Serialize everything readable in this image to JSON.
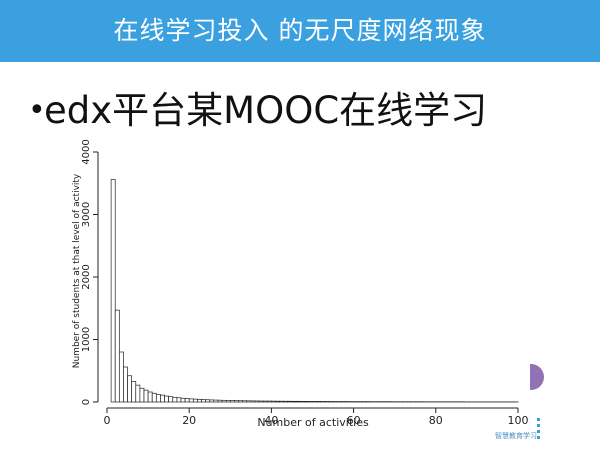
{
  "header": {
    "title": "在线学习投入 的无尺度网络现象"
  },
  "bullet": {
    "marker": "•",
    "text": "edx平台某MOOC在线学习"
  },
  "watermark": "智慧教育学习",
  "chart_data": {
    "type": "bar",
    "title": "",
    "xlabel": "Number of activities",
    "ylabel": "Number of students at that level of activity",
    "xlim": [
      0,
      100
    ],
    "ylim": [
      0,
      4000
    ],
    "xticks": [
      0,
      20,
      40,
      60,
      80,
      100
    ],
    "yticks": [
      0,
      1000,
      2000,
      3000,
      4000
    ],
    "bin_width": 1,
    "x": [
      1,
      2,
      3,
      4,
      5,
      6,
      7,
      8,
      9,
      10,
      11,
      12,
      13,
      14,
      15,
      16,
      17,
      18,
      19,
      20,
      21,
      22,
      23,
      24,
      25,
      26,
      27,
      28,
      29,
      30,
      31,
      32,
      33,
      34,
      35,
      36,
      37,
      38,
      39,
      40,
      41,
      42,
      43,
      44,
      45,
      46,
      47,
      48,
      49,
      50,
      51,
      52,
      53,
      54,
      55,
      56,
      57,
      58,
      59,
      60,
      61,
      62,
      63,
      64,
      65,
      66,
      67,
      68,
      69,
      70,
      71,
      72,
      73,
      74,
      75,
      76,
      77,
      78,
      79,
      80,
      81,
      82,
      83,
      84,
      85,
      86,
      87,
      88,
      89,
      90,
      91,
      92,
      93,
      94,
      95,
      96,
      97,
      98,
      99
    ],
    "values": [
      3560,
      1470,
      800,
      560,
      420,
      330,
      270,
      220,
      190,
      160,
      140,
      120,
      110,
      95,
      85,
      75,
      68,
      60,
      55,
      50,
      46,
      42,
      39,
      36,
      33,
      31,
      29,
      27,
      25,
      24,
      22,
      21,
      20,
      19,
      18,
      17,
      16,
      15,
      15,
      14,
      13,
      13,
      12,
      12,
      11,
      11,
      10,
      10,
      9,
      9,
      9,
      8,
      8,
      8,
      7,
      7,
      7,
      7,
      6,
      6,
      6,
      6,
      6,
      5,
      5,
      5,
      5,
      5,
      5,
      4,
      4,
      4,
      4,
      4,
      4,
      4,
      3,
      3,
      3,
      3,
      3,
      3,
      3,
      3,
      3,
      3,
      2,
      2,
      2,
      2,
      2,
      2,
      2,
      2,
      2,
      2,
      2,
      2,
      2
    ],
    "colors": {
      "bar_fill": "#ffffff",
      "bar_stroke": "#222222",
      "axis": "#222222"
    }
  }
}
